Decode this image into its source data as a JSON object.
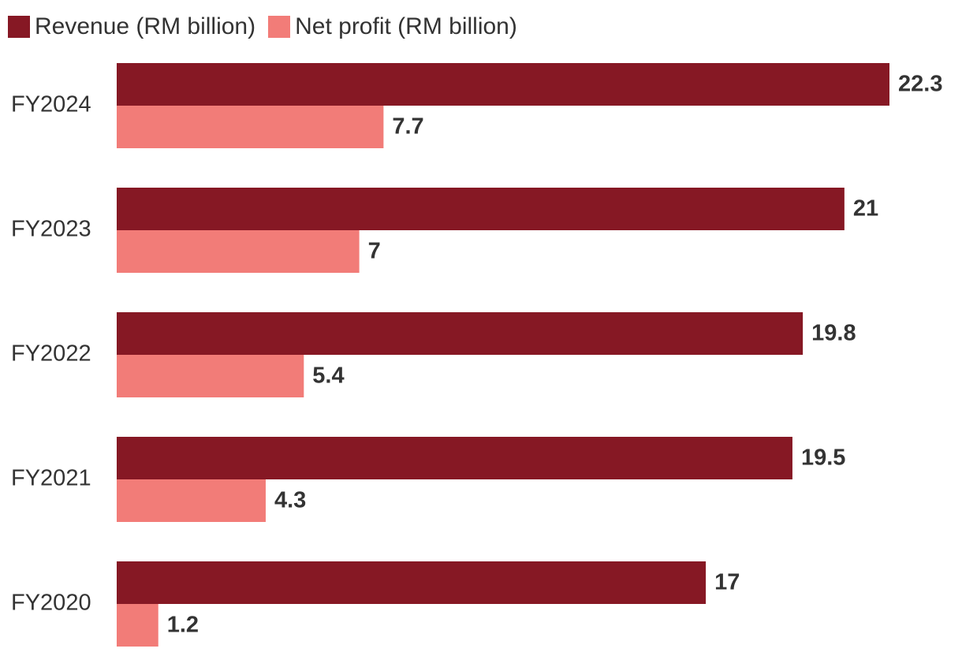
{
  "chart_data": {
    "type": "bar",
    "orientation": "horizontal",
    "title": "",
    "xlabel": "",
    "ylabel": "",
    "xlim": [
      0,
      22.3
    ],
    "grid": false,
    "legend_position": "top-left",
    "categories": [
      "FY2024",
      "FY2023",
      "FY2022",
      "FY2021",
      "FY2020"
    ],
    "series": [
      {
        "name": "Revenue (RM billion)",
        "color": "#861824",
        "values": [
          22.3,
          21,
          19.8,
          19.5,
          17
        ]
      },
      {
        "name": "Net profit (RM billion)",
        "color": "#F27C78",
        "values": [
          7.7,
          7,
          5.4,
          4.3,
          1.2
        ]
      }
    ],
    "value_labels": [
      [
        "22.3",
        "21",
        "19.8",
        "19.5",
        "17"
      ],
      [
        "7.7",
        "7",
        "5.4",
        "4.3",
        "1.2"
      ]
    ]
  }
}
